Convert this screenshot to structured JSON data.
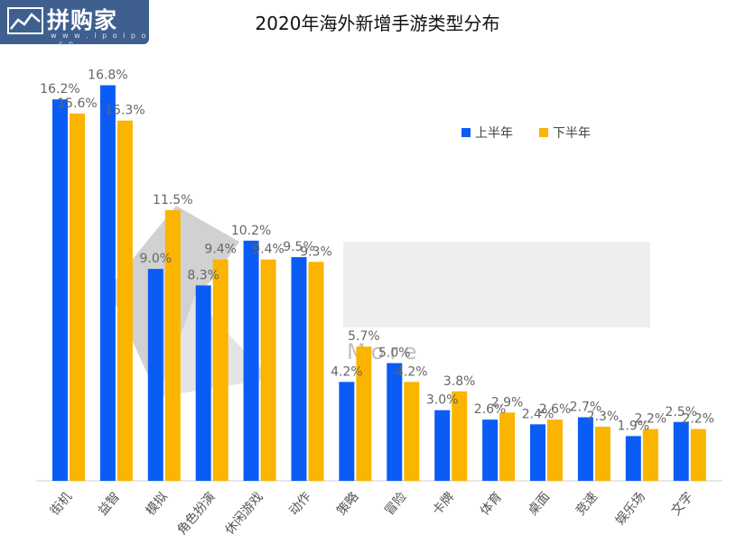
{
  "logo": {
    "text": "拼购家",
    "subtext": "w w w . i p o i p o . c n"
  },
  "watermark": "More",
  "chart_data": {
    "type": "bar",
    "title": "2020年海外新增手游类型分布",
    "categories": [
      "街机",
      "益智",
      "模拟",
      "角色扮演",
      "休闲游戏",
      "动作",
      "策略",
      "冒险",
      "卡牌",
      "体育",
      "桌面",
      "竞速",
      "娱乐场",
      "文字"
    ],
    "series": [
      {
        "name": "上半年",
        "color": "#0a5cf5",
        "values": [
          16.2,
          16.8,
          9.0,
          8.3,
          10.2,
          9.5,
          4.2,
          5.0,
          3.0,
          2.6,
          2.4,
          2.7,
          1.9,
          2.5
        ]
      },
      {
        "name": "下半年",
        "color": "#fbb400",
        "values": [
          15.6,
          15.3,
          11.5,
          9.4,
          9.4,
          9.3,
          5.7,
          4.2,
          3.8,
          2.9,
          2.6,
          2.3,
          2.2,
          2.2
        ]
      }
    ],
    "value_suffix": "%",
    "ylim": [
      0,
      18
    ],
    "grid": false,
    "legend_position": "top-right"
  }
}
